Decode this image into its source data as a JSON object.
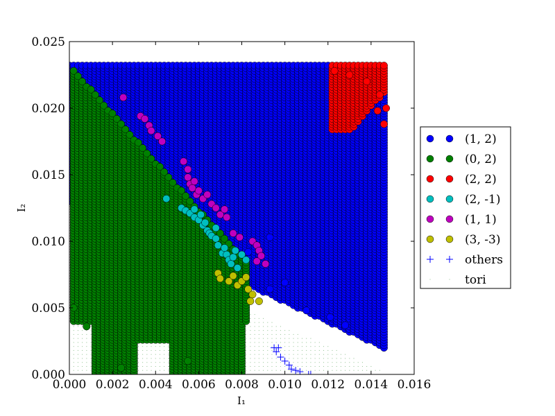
{
  "chart_data": {
    "type": "scatter",
    "title": "",
    "xlabel": "I₁",
    "ylabel": "I₂",
    "xlim": [
      0.0,
      0.016
    ],
    "ylim": [
      0.0,
      0.025
    ],
    "xticks": [
      "0.000",
      "0.002",
      "0.004",
      "0.006",
      "0.008",
      "0.010",
      "0.012",
      "0.014",
      "0.016"
    ],
    "yticks": [
      "0.000",
      "0.005",
      "0.010",
      "0.015",
      "0.020",
      "0.025"
    ],
    "grid": false,
    "legend_position": "right-outside",
    "series": [
      {
        "name": "(1, 2)",
        "marker": "circle",
        "color": "#0000ff",
        "region": "I1 + 1.33*I2 >= ~0.0172 (upper-right band above anti-diagonal), I1 <= 0.0148, I2 <= 0.0232",
        "points": [
          [
            0.0093,
            0.0064
          ],
          [
            0.01,
            0.0069
          ],
          [
            0.011,
            0.0048
          ],
          [
            0.0121,
            0.0043
          ],
          [
            0.0128,
            0.0037
          ],
          [
            0.0093,
            0.0103
          ],
          [
            0.0083,
            0.0092
          ]
        ]
      },
      {
        "name": "(0, 2)",
        "marker": "circle",
        "color": "#008000",
        "region": "lower-left wedge below diagonal I2 ~= 0.0232 - 1.8*I1, plus two lobes at bottom around I1 0.001-0.003 and 0.0045-0.0081",
        "points": [
          [
            0.0002,
            0.005
          ],
          [
            0.0008,
            0.0036
          ],
          [
            0.0024,
            0.0005
          ],
          [
            0.0055,
            0.001
          ]
        ]
      },
      {
        "name": "(2, 2)",
        "marker": "circle",
        "color": "#ff0000",
        "region": "top-right corner triangle I1 0.0122-0.0148, I2 0.0184-0.0232",
        "points": [
          [
            0.0123,
            0.0228
          ],
          [
            0.013,
            0.0225
          ],
          [
            0.0138,
            0.022
          ],
          [
            0.0144,
            0.021
          ],
          [
            0.0143,
            0.0198
          ],
          [
            0.0147,
            0.02
          ],
          [
            0.0146,
            0.0188
          ]
        ]
      },
      {
        "name": "(2, -1)",
        "marker": "circle",
        "color": "#00bfbf",
        "points": [
          [
            0.0045,
            0.0132
          ],
          [
            0.0052,
            0.0125
          ],
          [
            0.0054,
            0.0123
          ],
          [
            0.0056,
            0.0121
          ],
          [
            0.0058,
            0.0118
          ],
          [
            0.0058,
            0.0124
          ],
          [
            0.006,
            0.0116
          ],
          [
            0.0061,
            0.012
          ],
          [
            0.0062,
            0.0112
          ],
          [
            0.0063,
            0.0114
          ],
          [
            0.0064,
            0.0108
          ],
          [
            0.0065,
            0.0106
          ],
          [
            0.0066,
            0.0104
          ],
          [
            0.0068,
            0.011
          ],
          [
            0.0068,
            0.0102
          ],
          [
            0.0069,
            0.0097
          ],
          [
            0.0071,
            0.0091
          ],
          [
            0.0072,
            0.0095
          ],
          [
            0.0073,
            0.009
          ],
          [
            0.0074,
            0.0086
          ],
          [
            0.0075,
            0.0083
          ],
          [
            0.0076,
            0.0088
          ],
          [
            0.0077,
            0.0093
          ],
          [
            0.0078,
            0.008
          ],
          [
            0.008,
            0.009
          ],
          [
            0.0082,
            0.0086
          ]
        ]
      },
      {
        "name": "(1, 1)",
        "marker": "circle",
        "color": "#bf00bf",
        "points": [
          [
            0.0025,
            0.0208
          ],
          [
            0.0033,
            0.0194
          ],
          [
            0.0035,
            0.0192
          ],
          [
            0.0037,
            0.0187
          ],
          [
            0.0038,
            0.0183
          ],
          [
            0.0041,
            0.0179
          ],
          [
            0.0043,
            0.0175
          ],
          [
            0.0053,
            0.016
          ],
          [
            0.0055,
            0.0154
          ],
          [
            0.0055,
            0.0148
          ],
          [
            0.0056,
            0.0143
          ],
          [
            0.0057,
            0.014
          ],
          [
            0.0058,
            0.0145
          ],
          [
            0.0059,
            0.0135
          ],
          [
            0.006,
            0.0138
          ],
          [
            0.0062,
            0.0132
          ],
          [
            0.0064,
            0.0135
          ],
          [
            0.0066,
            0.0128
          ],
          [
            0.0068,
            0.0125
          ],
          [
            0.007,
            0.012
          ],
          [
            0.0072,
            0.0124
          ],
          [
            0.0073,
            0.0118
          ],
          [
            0.0076,
            0.0106
          ],
          [
            0.0079,
            0.0103
          ],
          [
            0.0085,
            0.01
          ],
          [
            0.0087,
            0.0097
          ],
          [
            0.0088,
            0.0093
          ],
          [
            0.0089,
            0.0089
          ],
          [
            0.0087,
            0.0085
          ],
          [
            0.0091,
            0.0083
          ]
        ]
      },
      {
        "name": "(3, -3)",
        "marker": "circle",
        "color": "#bfbf00",
        "points": [
          [
            0.0069,
            0.0076
          ],
          [
            0.007,
            0.0072
          ],
          [
            0.0074,
            0.007
          ],
          [
            0.0076,
            0.0074
          ],
          [
            0.0078,
            0.0067
          ],
          [
            0.008,
            0.007
          ],
          [
            0.0082,
            0.0073
          ],
          [
            0.0083,
            0.0064
          ],
          [
            0.0085,
            0.006
          ],
          [
            0.0084,
            0.0055
          ],
          [
            0.0088,
            0.0055
          ]
        ]
      },
      {
        "name": "others",
        "marker": "plus",
        "color": "#0000ff",
        "points": [
          [
            0.0095,
            0.002
          ],
          [
            0.0096,
            0.0017
          ],
          [
            0.0097,
            0.002
          ],
          [
            0.0098,
            0.0013
          ],
          [
            0.01,
            0.001
          ],
          [
            0.0102,
            0.0007
          ],
          [
            0.0103,
            0.0004
          ],
          [
            0.0105,
            0.0003
          ],
          [
            0.0107,
            0.0002
          ],
          [
            0.0111,
            0.0
          ],
          [
            0.0112,
            0.0
          ]
        ]
      },
      {
        "name": "tori",
        "marker": "dot",
        "color": "#90c090",
        "region": "fills remaining triangle I1 >= 0, I2 >= 0, I1 + 1.4*I2 <= ~0.0146 not covered by other markers"
      }
    ]
  }
}
